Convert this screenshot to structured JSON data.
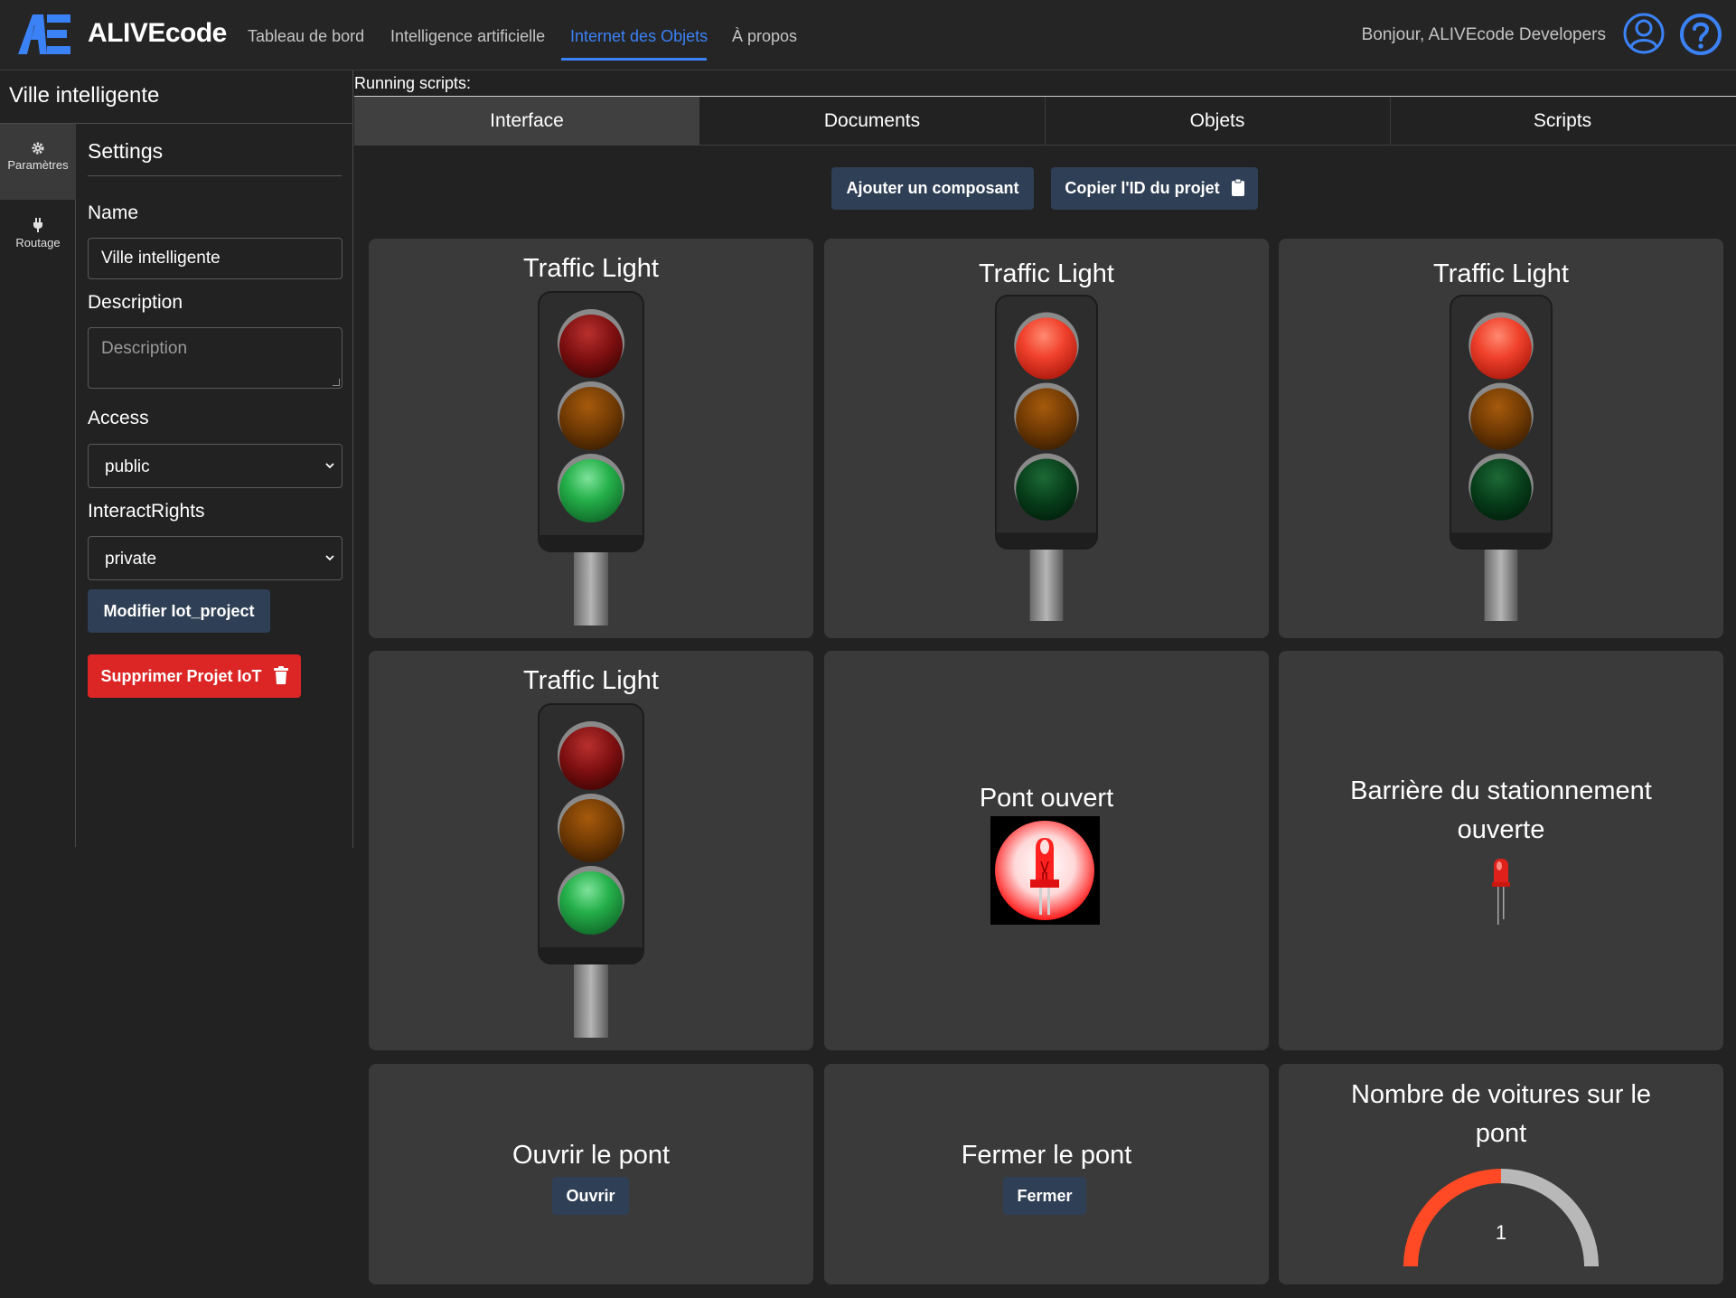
{
  "brand": {
    "name": "ALIVEcode",
    "logo": "ae-logo"
  },
  "nav": {
    "links": [
      "Tableau de bord",
      "Intelligence artificielle",
      "Internet des Objets",
      "À propos"
    ],
    "active": "Internet des Objets",
    "greeting": "Bonjour, ALIVEcode Developers",
    "icons": [
      "user-circle-icon",
      "help-circle-icon"
    ],
    "accent": "#3b82f6"
  },
  "project": {
    "title": "Ville intelligente"
  },
  "rail": [
    {
      "label": "Paramètres",
      "icon": "gear-icon",
      "active": true
    },
    {
      "label": "Routage",
      "icon": "plug-icon",
      "active": false
    }
  ],
  "settings": {
    "heading": "Settings",
    "name_label": "Name",
    "name_value": "Ville intelligente",
    "description_label": "Description",
    "description_placeholder": "Description",
    "access_label": "Access",
    "access_value": "public",
    "interact_label": "InteractRights",
    "interact_value": "private",
    "modify_label": "Modifier Iot_project",
    "delete_label": "Supprimer Projet IoT",
    "delete_color": "#dc2626"
  },
  "main": {
    "running_scripts": "Running scripts:",
    "tabs": [
      "Interface",
      "Documents",
      "Objets",
      "Scripts"
    ],
    "active_tab": "Interface",
    "add_component": "Ajouter un composant",
    "copy_id": "Copier l'ID du projet"
  },
  "components": {
    "tl1": {
      "title": "Traffic Light",
      "state": "green"
    },
    "tl2": {
      "title": "Traffic Light",
      "state": "red"
    },
    "tl3": {
      "title": "Traffic Light",
      "state": "red"
    },
    "tl4": {
      "title": "Traffic Light",
      "state": "green"
    },
    "bridge": {
      "title": "Pont ouvert",
      "led": "red-led-on"
    },
    "barrier": {
      "title_line1": "Barrière du stationnement",
      "title_line2": "ouverte",
      "led": "red-led-small"
    },
    "open_bridge": {
      "title": "Ouvrir le pont",
      "button": "Ouvrir"
    },
    "close_bridge": {
      "title": "Fermer le pont",
      "button": "Fermer"
    },
    "cars": {
      "title_line1": "Nombre de voitures sur le",
      "title_line2": "pont",
      "value": "1",
      "fraction": 0.5,
      "fill_color": "#ff4a25",
      "track_color": "#b8b8b8"
    }
  }
}
